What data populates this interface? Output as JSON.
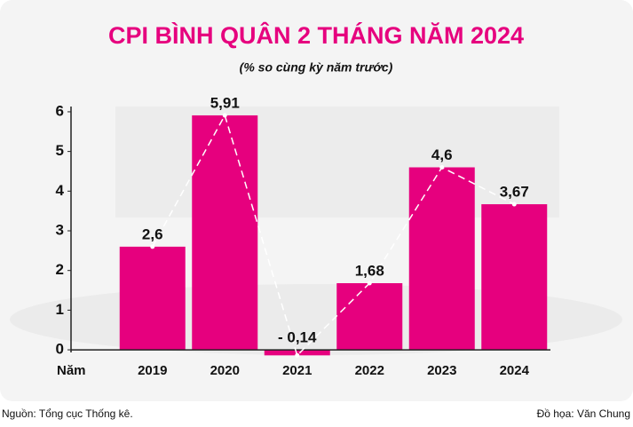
{
  "chart_data": {
    "type": "bar",
    "title": "CPI BÌNH QUÂN 2 THÁNG NĂM 2024",
    "subtitle": "(% so cùng kỳ năm trước)",
    "x_label": "Năm",
    "categories": [
      "2019",
      "2020",
      "2021",
      "2022",
      "2023",
      "2024"
    ],
    "values": [
      2.6,
      5.91,
      -0.14,
      1.68,
      4.6,
      3.67
    ],
    "value_labels": [
      "2,6",
      "5,91",
      "- 0,14",
      "1,68",
      "4,6",
      "3,67"
    ],
    "color": "#e6007e",
    "ylim": [
      -0.2,
      6.2
    ],
    "yticks": [
      0,
      1,
      2,
      3,
      4,
      5,
      6
    ],
    "source": "Nguồn: Tổng cục Thống kê.",
    "credit": "Đồ họa: Văn Chung"
  }
}
